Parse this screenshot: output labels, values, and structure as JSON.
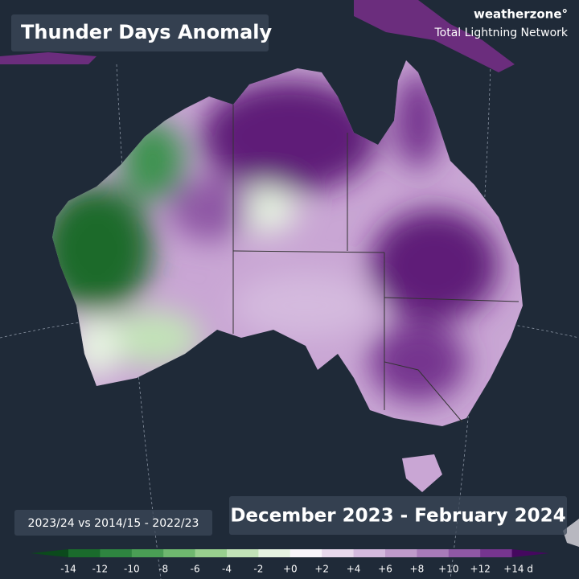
{
  "header": {
    "title": "Thunder Days Anomaly",
    "brand": "weatherzone°",
    "network": "Total Lightning Network"
  },
  "footer": {
    "comparison": "2023/24 vs 2014/15 - 2022/23",
    "period": "December 2023 - February 2024"
  },
  "legend": {
    "ticks": [
      "-14",
      "-12",
      "-10",
      "-8",
      "-6",
      "-4",
      "-2",
      "+0",
      "+2",
      "+4",
      "+6",
      "+8",
      "+10",
      "+12",
      "+14 d"
    ],
    "colors": [
      "#0b4a1c",
      "#1a6b2c",
      "#2e8540",
      "#4a9e55",
      "#6fb86f",
      "#98cf8e",
      "#c2e3b8",
      "#e6f3e1",
      "#f8f5fa",
      "#e8d9ec",
      "#d4bade",
      "#bf9bcb",
      "#a87bb9",
      "#8f58a5",
      "#76358f",
      "#45085f"
    ]
  }
}
